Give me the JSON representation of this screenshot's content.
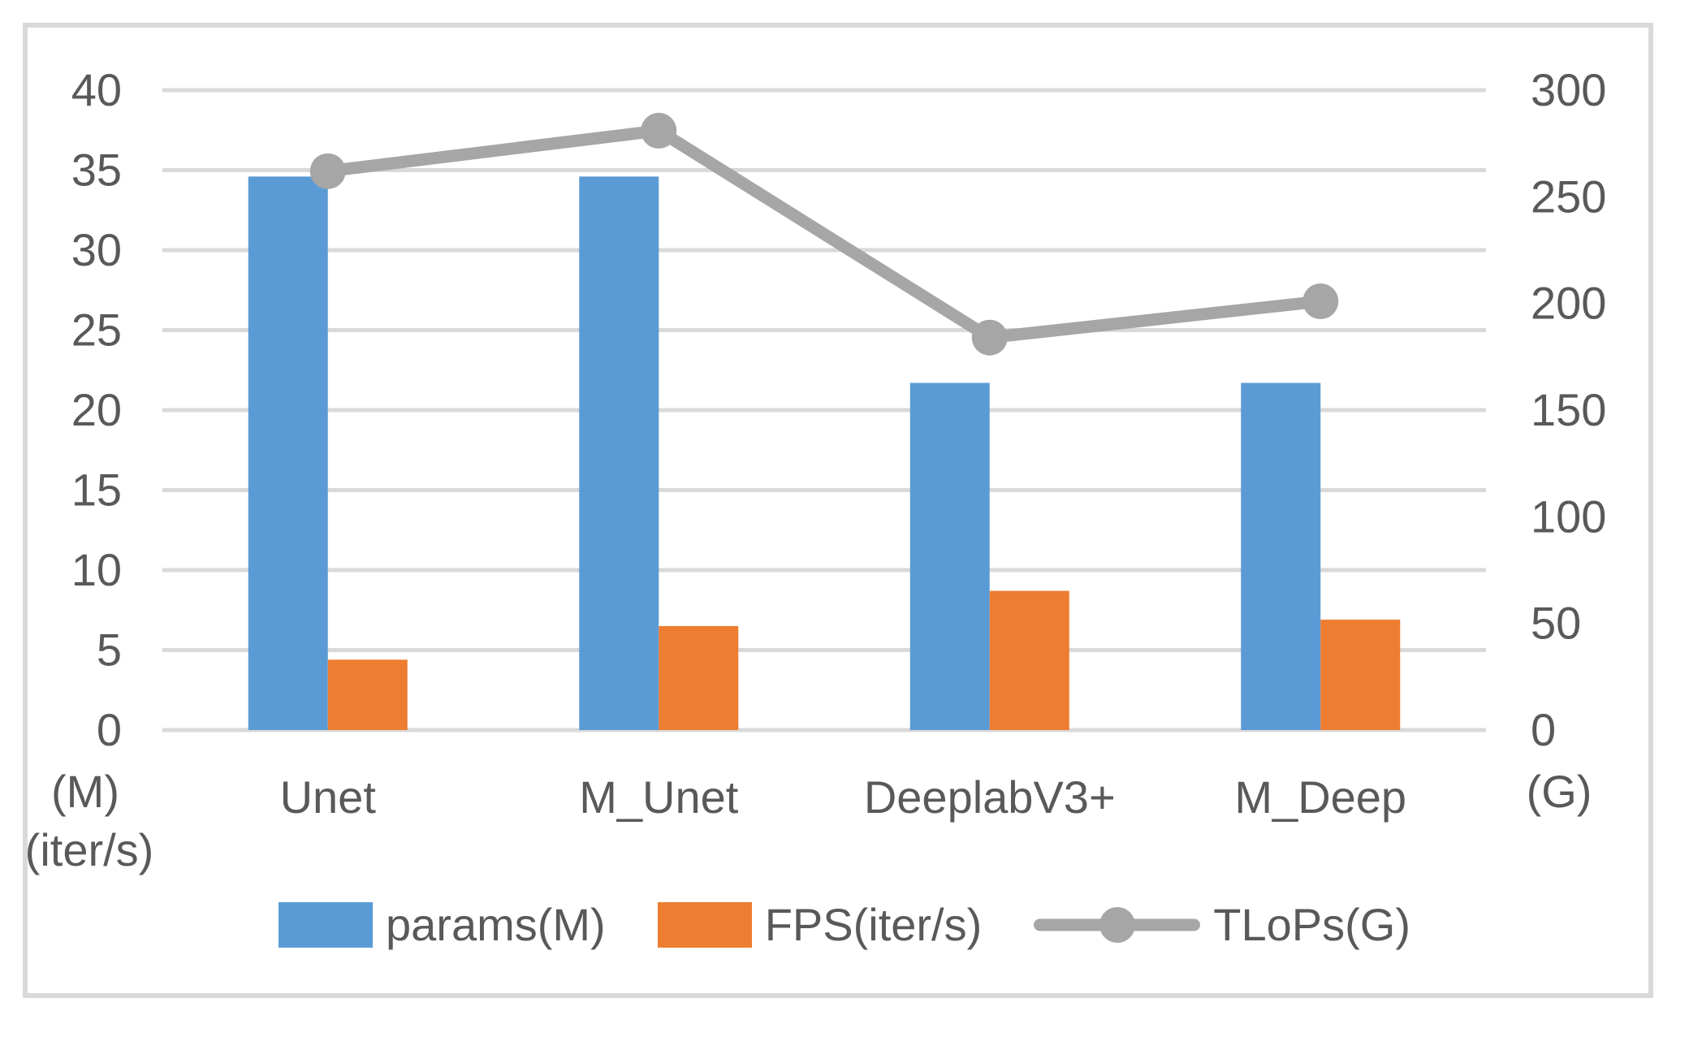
{
  "chart_data": {
    "type": "bar",
    "subtype": "clustered-bar-with-line-combo",
    "categories": [
      "Unet",
      "M_Unet",
      "DeeplabV3+",
      "M_Deep"
    ],
    "series": [
      {
        "name": "params(M)",
        "type": "bar",
        "axis": "left",
        "color": "#5B9BD5",
        "values": [
          34.6,
          34.6,
          21.7,
          21.7
        ]
      },
      {
        "name": "FPS(iter/s)",
        "type": "bar",
        "axis": "left",
        "color": "#ED7D31",
        "values": [
          4.4,
          6.5,
          8.7,
          6.9
        ]
      },
      {
        "name": "TLoPs(G)",
        "type": "line",
        "axis": "right",
        "color": "#A6A6A6",
        "values": [
          262,
          281,
          184,
          201
        ]
      }
    ],
    "left_axis": {
      "min": 0,
      "max": 40,
      "step": 5,
      "tick_labels": [
        "40",
        "35",
        "30",
        "25",
        "20",
        "15",
        "10",
        "5",
        "0"
      ],
      "unit_labels": [
        "(M)",
        "(iter/s)"
      ]
    },
    "right_axis": {
      "min": 0,
      "max": 300,
      "step": 50,
      "tick_labels": [
        "300",
        "250",
        "200",
        "150",
        "100",
        "50",
        "0"
      ],
      "unit_labels": [
        "(G)"
      ]
    },
    "title": "",
    "xlabel": "",
    "ylabel": "",
    "grid": true,
    "legend_position": "bottom"
  },
  "colors": {
    "bar_params": "#5B9BD5",
    "bar_fps": "#ED7D31",
    "line_tlops": "#A6A6A6",
    "gridline": "#D9D9D9",
    "frame_border": "#D9D9D9",
    "text": "#595959",
    "background": "#FFFFFF"
  }
}
